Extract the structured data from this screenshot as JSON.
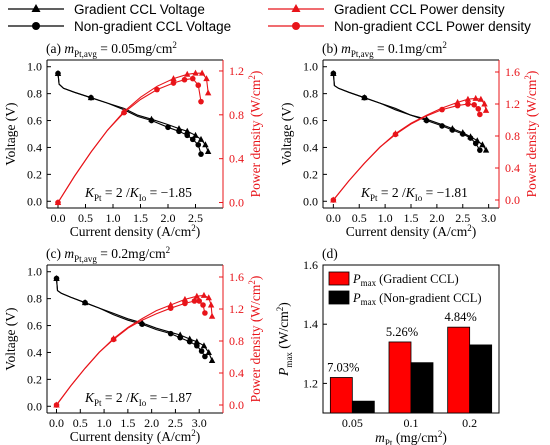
{
  "legend": {
    "gradient_voltage": "Gradient CCL Voltage",
    "gradient_power": "Gradient CCL Power density",
    "nongradient_voltage": "Non-gradient CCL Voltage",
    "nongradient_power": "Non-gradient CCL Power density"
  },
  "colors": {
    "voltage": "#000000",
    "power": "#e8141a",
    "bar_gradient": "#ff0000",
    "bar_nongradient": "#000000"
  },
  "chart_data": [
    {
      "type": "line",
      "panel": "(a)",
      "title_prefix": "(a) ",
      "m_symbol": "m",
      "m_subscript": "Pt,avg",
      "title_value": " = 0.05mg/cm",
      "title_sup": "2",
      "k_symbol": "K",
      "k_sub_pt": "Pt",
      "k_mid": " = 2 /",
      "k_sub_io": "Io",
      "k_value": " = −1.85",
      "xlabel": "Current density (A/cm",
      "xlabel_sup": "2",
      "xlabel_end": ")",
      "ylabel": "Voltage (V)",
      "y2label": "Power density (W/cm",
      "y2label_sup": "2",
      "y2label_end": ")",
      "xlim": [
        -0.2,
        3.0
      ],
      "ylim": [
        -0.05,
        1.05
      ],
      "y2lim": [
        -0.05,
        1.3
      ],
      "xticks": [
        0.0,
        0.5,
        1.0,
        1.5,
        2.0,
        2.5
      ],
      "xtick_labels": [
        "0.0",
        "0.5",
        "1.0",
        "1.5",
        "2.0",
        "2.5"
      ],
      "yticks": [
        0.0,
        0.2,
        0.4,
        0.6,
        0.8,
        1.0
      ],
      "ytick_labels": [
        "0.0",
        "0.2",
        "0.4",
        "0.6",
        "0.8",
        "1.0"
      ],
      "y2ticks": [
        0.0,
        0.4,
        0.8,
        1.2
      ],
      "y2tick_labels": [
        "0.0",
        "0.4",
        "0.8",
        "1.2"
      ],
      "series": [
        {
          "name": "Gradient CCL Voltage",
          "axis": "left",
          "marker": "triangle",
          "x": [
            0.0,
            0.02,
            0.1,
            0.3,
            0.6,
            0.9,
            1.2,
            1.45,
            1.7,
            2.0,
            2.2,
            2.35,
            2.5,
            2.6,
            2.68,
            2.73
          ],
          "y": [
            0.95,
            0.87,
            0.84,
            0.81,
            0.77,
            0.73,
            0.69,
            0.64,
            0.61,
            0.57,
            0.54,
            0.52,
            0.49,
            0.46,
            0.42,
            0.37
          ]
        },
        {
          "name": "Non-gradient CCL Voltage",
          "axis": "left",
          "marker": "circle",
          "x": [
            0.0,
            0.02,
            0.1,
            0.3,
            0.6,
            0.9,
            1.2,
            1.45,
            1.7,
            2.0,
            2.2,
            2.35,
            2.45,
            2.55,
            2.6
          ],
          "y": [
            0.95,
            0.87,
            0.84,
            0.81,
            0.77,
            0.73,
            0.68,
            0.63,
            0.6,
            0.55,
            0.52,
            0.49,
            0.46,
            0.42,
            0.35
          ]
        },
        {
          "name": "Gradient CCL Power density",
          "axis": "right",
          "marker": "triangle",
          "x": [
            0.0,
            0.3,
            0.6,
            0.9,
            1.2,
            1.5,
            1.8,
            2.1,
            2.35,
            2.5,
            2.62,
            2.7,
            2.73
          ],
          "y": [
            0.0,
            0.24,
            0.46,
            0.66,
            0.83,
            0.96,
            1.06,
            1.13,
            1.17,
            1.18,
            1.18,
            1.13,
            1.0
          ]
        },
        {
          "name": "Non-gradient CCL Power density",
          "axis": "right",
          "marker": "circle",
          "x": [
            0.0,
            0.3,
            0.6,
            0.9,
            1.2,
            1.5,
            1.8,
            2.1,
            2.3,
            2.45,
            2.55,
            2.6
          ],
          "y": [
            0.0,
            0.24,
            0.46,
            0.66,
            0.82,
            0.94,
            1.03,
            1.09,
            1.12,
            1.13,
            1.07,
            0.92
          ]
        }
      ]
    },
    {
      "type": "line",
      "panel": "(b)",
      "title_prefix": "(b) ",
      "m_symbol": "m",
      "m_subscript": "Pt,avg",
      "title_value": " = 0.1mg/cm",
      "title_sup": "2",
      "k_symbol": "K",
      "k_sub_pt": "Pt",
      "k_mid": " = 2 /",
      "k_sub_io": "Io",
      "k_value": " = −1.81",
      "xlabel": "Current density (A/cm",
      "xlabel_sup": "2",
      "xlabel_end": ")",
      "ylabel": "Voltage (V)",
      "y2label": "Power density (W/cm",
      "y2label_sup": "2",
      "y2label_end": ")",
      "xlim": [
        -0.2,
        3.2
      ],
      "ylim": [
        -0.05,
        1.05
      ],
      "y2lim": [
        -0.1,
        1.75
      ],
      "xticks": [
        0.0,
        0.5,
        1.0,
        1.5,
        2.0,
        2.5,
        3.0
      ],
      "xtick_labels": [
        "0.0",
        "0.5",
        "1.0",
        "1.5",
        "2.0",
        "2.5",
        "3.0"
      ],
      "yticks": [
        0.0,
        0.2,
        0.4,
        0.6,
        0.8,
        1.0
      ],
      "ytick_labels": [
        "0.0",
        "0.2",
        "0.4",
        "0.6",
        "0.8",
        "1.0"
      ],
      "y2ticks": [
        0.0,
        0.4,
        0.8,
        1.2,
        1.6
      ],
      "y2tick_labels": [
        "0.0",
        "0.4",
        "0.8",
        "1.2",
        "1.6"
      ],
      "series": [
        {
          "name": "Gradient CCL Voltage",
          "axis": "left",
          "marker": "triangle",
          "x": [
            0.0,
            0.02,
            0.1,
            0.3,
            0.6,
            0.9,
            1.2,
            1.5,
            1.8,
            2.1,
            2.3,
            2.5,
            2.65,
            2.78,
            2.88,
            2.95
          ],
          "y": [
            0.95,
            0.86,
            0.84,
            0.81,
            0.77,
            0.73,
            0.69,
            0.64,
            0.61,
            0.57,
            0.54,
            0.51,
            0.48,
            0.45,
            0.42,
            0.38
          ]
        },
        {
          "name": "Non-gradient CCL Voltage",
          "axis": "left",
          "marker": "circle",
          "x": [
            0.0,
            0.02,
            0.1,
            0.3,
            0.6,
            0.9,
            1.2,
            1.5,
            1.8,
            2.1,
            2.3,
            2.5,
            2.65,
            2.75,
            2.83
          ],
          "y": [
            0.95,
            0.86,
            0.84,
            0.81,
            0.77,
            0.73,
            0.68,
            0.64,
            0.6,
            0.56,
            0.53,
            0.5,
            0.47,
            0.43,
            0.38
          ]
        },
        {
          "name": "Gradient CCL Power density",
          "axis": "right",
          "marker": "triangle",
          "x": [
            0.0,
            0.3,
            0.6,
            0.9,
            1.2,
            1.5,
            1.8,
            2.1,
            2.4,
            2.6,
            2.75,
            2.85,
            2.92,
            2.95
          ],
          "y": [
            0.0,
            0.24,
            0.46,
            0.66,
            0.83,
            0.96,
            1.06,
            1.15,
            1.22,
            1.26,
            1.27,
            1.26,
            1.2,
            1.12
          ]
        },
        {
          "name": "Non-gradient CCL Power density",
          "axis": "right",
          "marker": "circle",
          "x": [
            0.0,
            0.3,
            0.6,
            0.9,
            1.2,
            1.5,
            1.8,
            2.1,
            2.4,
            2.6,
            2.72,
            2.8,
            2.83
          ],
          "y": [
            0.0,
            0.24,
            0.46,
            0.66,
            0.82,
            0.95,
            1.05,
            1.13,
            1.18,
            1.2,
            1.19,
            1.14,
            1.07
          ]
        }
      ]
    },
    {
      "type": "line",
      "panel": "(c)",
      "title_prefix": "(c) ",
      "m_symbol": "m",
      "m_subscript": "Pt,avg",
      "title_value": " = 0.2mg/cm",
      "title_sup": "2",
      "k_symbol": "K",
      "k_sub_pt": "Pt",
      "k_mid": " = 2 /",
      "k_sub_io": "Io",
      "k_value": " = −1.87",
      "xlabel": "Current density (A/cm",
      "xlabel_sup": "2",
      "xlabel_end": ")",
      "ylabel": "Voltage (V)",
      "y2label": "Power density (W/cm",
      "y2label_sup": "2",
      "y2label_end": ")",
      "xlim": [
        -0.2,
        3.5
      ],
      "ylim": [
        -0.05,
        1.05
      ],
      "y2lim": [
        -0.1,
        1.75
      ],
      "xticks": [
        0.0,
        0.5,
        1.0,
        1.5,
        2.0,
        2.5,
        3.0
      ],
      "xtick_labels": [
        "0.0",
        "0.5",
        "1.0",
        "1.5",
        "2.0",
        "2.5",
        "3.0"
      ],
      "yticks": [
        0.0,
        0.2,
        0.4,
        0.6,
        0.8,
        1.0
      ],
      "ytick_labels": [
        "0.0",
        "0.2",
        "0.4",
        "0.6",
        "0.8",
        "1.0"
      ],
      "y2ticks": [
        0.0,
        0.4,
        0.8,
        1.2,
        1.6
      ],
      "y2tick_labels": [
        "0.0",
        "0.4",
        "0.8",
        "1.2",
        "1.6"
      ],
      "series": [
        {
          "name": "Gradient CCL Voltage",
          "axis": "left",
          "marker": "triangle",
          "x": [
            0.0,
            0.02,
            0.1,
            0.3,
            0.6,
            0.9,
            1.2,
            1.5,
            1.8,
            2.1,
            2.4,
            2.6,
            2.8,
            2.95,
            3.1,
            3.2,
            3.27
          ],
          "y": [
            0.95,
            0.86,
            0.84,
            0.81,
            0.77,
            0.73,
            0.69,
            0.65,
            0.62,
            0.58,
            0.55,
            0.53,
            0.5,
            0.48,
            0.45,
            0.4,
            0.34
          ]
        },
        {
          "name": "Non-gradient CCL Voltage",
          "axis": "left",
          "marker": "circle",
          "x": [
            0.0,
            0.02,
            0.1,
            0.3,
            0.6,
            0.9,
            1.2,
            1.5,
            1.8,
            2.1,
            2.4,
            2.6,
            2.8,
            2.95,
            3.05,
            3.12
          ],
          "y": [
            0.95,
            0.86,
            0.84,
            0.81,
            0.77,
            0.73,
            0.68,
            0.64,
            0.61,
            0.57,
            0.54,
            0.51,
            0.48,
            0.45,
            0.41,
            0.37
          ]
        },
        {
          "name": "Gradient CCL Power density",
          "axis": "right",
          "marker": "triangle",
          "x": [
            0.0,
            0.3,
            0.6,
            0.9,
            1.2,
            1.5,
            1.8,
            2.1,
            2.4,
            2.7,
            2.95,
            3.1,
            3.2,
            3.25,
            3.27
          ],
          "y": [
            0.0,
            0.24,
            0.46,
            0.66,
            0.83,
            0.97,
            1.08,
            1.18,
            1.25,
            1.32,
            1.36,
            1.37,
            1.34,
            1.25,
            1.11
          ]
        },
        {
          "name": "Non-gradient CCL Power density",
          "axis": "right",
          "marker": "circle",
          "x": [
            0.0,
            0.3,
            0.6,
            0.9,
            1.2,
            1.5,
            1.8,
            2.1,
            2.4,
            2.7,
            2.9,
            3.0,
            3.08,
            3.12
          ],
          "y": [
            0.0,
            0.24,
            0.46,
            0.66,
            0.82,
            0.96,
            1.06,
            1.14,
            1.21,
            1.27,
            1.3,
            1.3,
            1.25,
            1.15
          ]
        }
      ]
    },
    {
      "type": "bar",
      "panel": "(d)",
      "title_prefix": "(d)",
      "categories": [
        "0.05",
        "0.1",
        "0.2"
      ],
      "xlabel_symbol": "m",
      "xlabel_sub": "Pt",
      "xlabel_rest": " (mg/cm",
      "xlabel_sup": "2",
      "xlabel_end": ")",
      "ylabel_symbol": "P",
      "ylabel_sub": "max",
      "ylabel_rest": " (W/cm",
      "ylabel_sup": "2",
      "ylabel_end": ")",
      "ylim": [
        1.1,
        1.6
      ],
      "yticks": [
        1.2,
        1.4,
        1.6
      ],
      "ytick_labels": [
        "1.2",
        "1.4",
        "1.6"
      ],
      "legend_symbol": "P",
      "legend_sub": "max",
      "series": [
        {
          "name": "(Gradient CCL)",
          "values": [
            1.22,
            1.34,
            1.39
          ]
        },
        {
          "name": "(Non-gradient CCL)",
          "values": [
            1.14,
            1.27,
            1.33
          ]
        }
      ],
      "annotations": [
        "7.03%",
        "5.26%",
        "4.84%"
      ]
    }
  ]
}
